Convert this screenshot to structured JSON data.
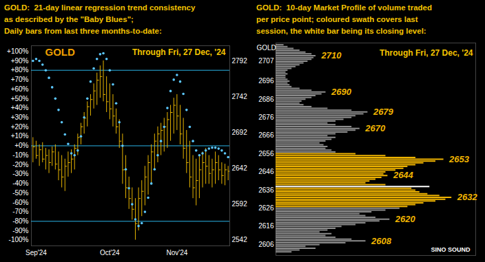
{
  "chart_data": [
    {
      "type": "ohlc",
      "title": "GOLD:  21-day linear regression trend consistency\nas described by the \"Baby Blues\";\nDaily bars from last three months-to-date:",
      "annotations": [
        "GOLD",
        "Through Fri, 27 Dec, '24"
      ],
      "categories": [
        null,
        "Sep'24",
        null,
        null,
        null,
        null,
        null,
        null,
        null,
        null,
        null,
        null,
        null,
        null,
        null,
        null,
        null,
        null,
        null,
        null,
        null,
        null,
        null,
        null,
        "Oct'24",
        null,
        null,
        null,
        null,
        null,
        null,
        null,
        null,
        null,
        null,
        null,
        null,
        null,
        null,
        null,
        null,
        null,
        null,
        null,
        null,
        "Nov'24",
        null,
        null,
        null,
        null,
        null,
        null,
        null,
        null,
        null,
        null,
        null,
        null,
        null,
        null,
        null,
        null
      ],
      "high": [
        2685,
        2680,
        2675,
        2678,
        2670,
        2668,
        2672,
        2675,
        2665,
        2660,
        2655,
        2665,
        2668,
        2675,
        2690,
        2705,
        2720,
        2735,
        2745,
        2760,
        2775,
        2785,
        2792,
        2770,
        2760,
        2745,
        2725,
        2710,
        2690,
        2660,
        2630,
        2615,
        2600,
        2615,
        2625,
        2645,
        2660,
        2675,
        2690,
        2700,
        2705,
        2712,
        2720,
        2730,
        2740,
        2745,
        2730,
        2712,
        2695,
        2680,
        2660,
        2655,
        2660,
        2665,
        2670,
        2660,
        2655,
        2665,
        2660,
        2650,
        2648,
        2645
      ],
      "low": [
        2650,
        2655,
        2645,
        2650,
        2640,
        2635,
        2645,
        2640,
        2625,
        2615,
        2610,
        2630,
        2635,
        2640,
        2660,
        2675,
        2690,
        2700,
        2715,
        2725,
        2730,
        2740,
        2735,
        2720,
        2710,
        2700,
        2690,
        2670,
        2620,
        2600,
        2585,
        2570,
        2542,
        2555,
        2575,
        2590,
        2605,
        2620,
        2640,
        2650,
        2660,
        2665,
        2670,
        2680,
        2690,
        2695,
        2675,
        2655,
        2635,
        2615,
        2600,
        2590,
        2600,
        2615,
        2620,
        2620,
        2615,
        2620,
        2625,
        2620,
        2618,
        2625
      ],
      "close": [
        2672,
        2660,
        2668,
        2655,
        2660,
        2650,
        2665,
        2648,
        2640,
        2630,
        2645,
        2650,
        2655,
        2670,
        2685,
        2700,
        2712,
        2728,
        2738,
        2750,
        2765,
        2770,
        2745,
        2735,
        2725,
        2715,
        2700,
        2680,
        2640,
        2615,
        2600,
        2585,
        2565,
        2600,
        2610,
        2630,
        2650,
        2665,
        2680,
        2690,
        2695,
        2700,
        2710,
        2720,
        2730,
        2715,
        2690,
        2670,
        2650,
        2630,
        2615,
        2625,
        2640,
        2650,
        2645,
        2635,
        2640,
        2650,
        2640,
        2632,
        2640,
        2638
      ],
      "color": "#e6b400",
      "trend_consistency": {
        "axis": "y2",
        "color": "#5cc8ff",
        "marker": "circle",
        "values": [
          90,
          92,
          90,
          86,
          80,
          72,
          62,
          50,
          38,
          25,
          12,
          2,
          -8,
          -10,
          -5,
          10,
          30,
          50,
          68,
          82,
          92,
          97,
          98,
          92,
          80,
          65,
          45,
          25,
          0,
          -25,
          -45,
          -62,
          -78,
          -85,
          -82,
          -70,
          -55,
          -40,
          -25,
          -10,
          5,
          20,
          40,
          58,
          70,
          75,
          68,
          55,
          38,
          20,
          5,
          -5,
          -10,
          -8,
          -5,
          -3,
          -2,
          -2,
          -3,
          -5,
          -8,
          -12
        ]
      },
      "y2_lines": [
        80,
        0,
        -80
      ],
      "ylim": [
        2534,
        2813
      ],
      "yticks": [
        2542,
        2592,
        2642,
        2692,
        2742,
        2792
      ],
      "y2lim": [
        -106,
        106
      ],
      "y2ticks": [
        {
          "value": 100,
          "label": "+100%"
        },
        {
          "value": 90,
          "label": "+90%"
        },
        {
          "value": 80,
          "label": "+80%"
        },
        {
          "value": 70,
          "label": "+70%"
        },
        {
          "value": 60,
          "label": "+60%"
        },
        {
          "value": 50,
          "label": "+50%"
        },
        {
          "value": 40,
          "label": "+40%"
        },
        {
          "value": 30,
          "label": "+30%"
        },
        {
          "value": 20,
          "label": "+20%"
        },
        {
          "value": 10,
          "label": "+10%"
        },
        {
          "value": 0,
          "label": "+0%"
        },
        {
          "value": -10,
          "label": "-10%"
        },
        {
          "value": -20,
          "label": "-20%"
        },
        {
          "value": -30,
          "label": "-30%"
        },
        {
          "value": -40,
          "label": "-40%"
        },
        {
          "value": -50,
          "label": "-50%"
        },
        {
          "value": -60,
          "label": "-60%"
        },
        {
          "value": -70,
          "label": "-70%"
        },
        {
          "value": -80,
          "label": "-80%"
        },
        {
          "value": -90,
          "label": "-90%"
        },
        {
          "value": -100,
          "label": "-100%"
        }
      ]
    },
    {
      "type": "bar",
      "orientation": "horizontal",
      "title": "GOLD:  10-day Market Profile of volume traded\nper price point; coloured swath covers last\nsession, the white bar being its closing level:",
      "y_label": "GOLD",
      "annotations": [
        "Through Fri, 27 Dec, '24"
      ],
      "level_labels": [
        2710,
        2690,
        2679,
        2670,
        2653,
        2644,
        2632,
        2620,
        2608
      ],
      "y": [
        2602,
        2603,
        2604,
        2605,
        2606,
        2607,
        2608,
        2609,
        2610,
        2611,
        2612,
        2613,
        2614,
        2615,
        2616,
        2617,
        2618,
        2619,
        2620,
        2621,
        2622,
        2623,
        2624,
        2625,
        2626,
        2627,
        2628,
        2629,
        2630,
        2631,
        2632,
        2633,
        2634,
        2635,
        2636,
        2637,
        2638,
        2639,
        2640,
        2641,
        2642,
        2643,
        2644,
        2645,
        2646,
        2647,
        2648,
        2649,
        2650,
        2651,
        2652,
        2653,
        2654,
        2655,
        2656,
        2657,
        2658,
        2659,
        2660,
        2661,
        2662,
        2663,
        2664,
        2665,
        2666,
        2667,
        2668,
        2669,
        2670,
        2671,
        2672,
        2673,
        2674,
        2675,
        2676,
        2677,
        2678,
        2679,
        2680,
        2681,
        2682,
        2683,
        2684,
        2685,
        2686,
        2687,
        2688,
        2689,
        2690,
        2691,
        2692,
        2693,
        2694,
        2695,
        2696,
        2697,
        2698,
        2699,
        2700,
        2701,
        2702,
        2703,
        2704,
        2705,
        2706,
        2707,
        2708,
        2709,
        2710,
        2711,
        2712,
        2713,
        2714,
        2715,
        2716
      ],
      "values": [
        8,
        12,
        20,
        15,
        22,
        35,
        45,
        38,
        30,
        25,
        28,
        22,
        26,
        30,
        33,
        40,
        45,
        52,
        57,
        50,
        45,
        42,
        48,
        55,
        62,
        66,
        70,
        74,
        80,
        85,
        88,
        82,
        76,
        72,
        70,
        68,
        77,
        55,
        45,
        47,
        50,
        53,
        56,
        54,
        55,
        60,
        64,
        66,
        70,
        74,
        80,
        84,
        70,
        55,
        40,
        30,
        28,
        25,
        26,
        24,
        22,
        25,
        28,
        30,
        26,
        30,
        36,
        40,
        42,
        38,
        30,
        26,
        30,
        34,
        38,
        40,
        44,
        46,
        38,
        26,
        18,
        14,
        12,
        13,
        15,
        18,
        20,
        23,
        25,
        18,
        12,
        8,
        7,
        6,
        7,
        6,
        5,
        5,
        6,
        5,
        6,
        8,
        10,
        12,
        14,
        16,
        18,
        19,
        20,
        18,
        15,
        12,
        9,
        6,
        4
      ],
      "color": "#8c8c8c",
      "session_range": [
        2627,
        2656
      ],
      "close": 2638,
      "xlim": [
        0,
        100
      ],
      "tick_labels": "y",
      "ylim": [
        2600,
        2717
      ],
      "yticks": [
        2606,
        2616,
        2626,
        2636,
        2646,
        2656,
        2666,
        2676,
        2686,
        2696,
        2707
      ],
      "watermark": "SINO SOUND"
    }
  ]
}
